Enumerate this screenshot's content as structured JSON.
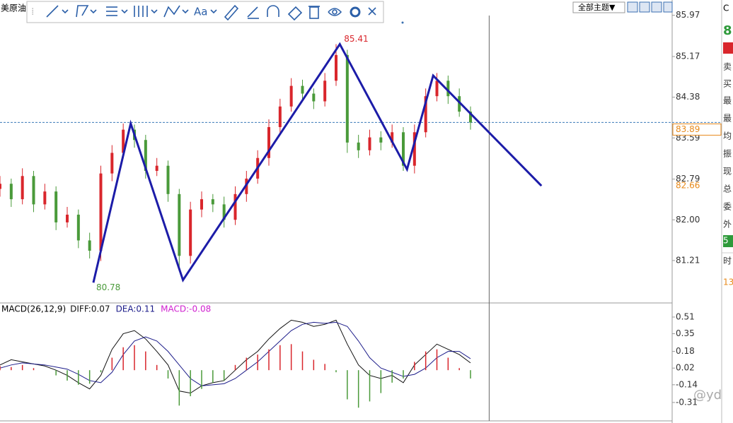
{
  "header": {
    "symbol": "美原油",
    "toolbar_text": "Aa",
    "theme_button": "全部主题▼"
  },
  "side_panel": [
    "C",
    "8",
    "卖",
    "买",
    "最",
    "最",
    "均",
    "振",
    "现",
    "总",
    "委",
    "外",
    "5",
    "时",
    "13"
  ],
  "watermark": "@yd",
  "chart_data": [
    {
      "type": "candlestick",
      "x": [
        0,
        3,
        6,
        9,
        12,
        15,
        18,
        21,
        24,
        27,
        30,
        33,
        36,
        39,
        42,
        45,
        48,
        51,
        54,
        57,
        60,
        63,
        66,
        69,
        72,
        75,
        78,
        81,
        84,
        87,
        90,
        93,
        96,
        99,
        102,
        105,
        108,
        111,
        114,
        117,
        120,
        123,
        126
      ],
      "open": [
        82.6,
        82.7,
        82.4,
        82.85,
        82.3,
        82.55,
        81.95,
        82.1,
        81.6,
        81.4,
        82.9,
        83.3,
        83.75,
        83.55,
        82.95,
        83.05,
        82.5,
        81.3,
        82.2,
        82.4,
        82.3,
        82.0,
        82.5,
        82.8,
        83.2,
        83.8,
        84.2,
        84.6,
        84.45,
        84.3,
        84.7,
        85.2,
        83.5,
        83.35,
        83.6,
        83.5,
        83.7,
        83.05,
        83.7,
        84.4,
        84.7,
        84.4,
        84.1
      ],
      "high": [
        82.85,
        82.8,
        83.0,
        82.95,
        82.7,
        82.65,
        82.25,
        82.2,
        81.75,
        83.05,
        83.45,
        83.87,
        83.85,
        83.65,
        83.2,
        83.15,
        82.6,
        82.35,
        82.55,
        82.5,
        82.45,
        82.65,
        82.95,
        83.35,
        83.95,
        84.35,
        84.75,
        84.72,
        84.55,
        84.85,
        85.41,
        85.3,
        83.65,
        83.75,
        83.72,
        83.85,
        83.8,
        83.85,
        84.55,
        84.85,
        84.8,
        84.55,
        84.2
      ],
      "low": [
        82.45,
        82.25,
        82.3,
        82.15,
        82.2,
        81.8,
        81.85,
        81.45,
        81.25,
        81.2,
        82.75,
        83.2,
        83.4,
        82.8,
        82.85,
        82.35,
        81.0,
        81.15,
        82.05,
        82.15,
        81.85,
        81.9,
        82.35,
        82.7,
        83.05,
        83.65,
        84.1,
        84.3,
        84.15,
        84.2,
        84.6,
        83.3,
        83.2,
        83.25,
        83.35,
        83.4,
        82.95,
        82.9,
        83.6,
        84.3,
        84.25,
        84.0,
        83.75
      ],
      "close": [
        82.7,
        82.4,
        82.85,
        82.3,
        82.55,
        81.95,
        82.1,
        81.6,
        81.4,
        82.9,
        83.3,
        83.75,
        83.55,
        82.95,
        83.05,
        82.5,
        81.3,
        82.2,
        82.4,
        82.3,
        82.0,
        82.5,
        82.8,
        83.2,
        83.8,
        84.2,
        84.6,
        84.45,
        84.3,
        84.7,
        85.2,
        83.5,
        83.35,
        83.6,
        83.5,
        83.7,
        83.05,
        83.7,
        84.4,
        84.7,
        84.4,
        84.1,
        83.89
      ],
      "up_color": "#d9262c",
      "down_color": "#4a9a3a",
      "series": [
        {
          "x": [
            25,
            35,
            49,
            91,
            109,
            116,
            145
          ],
          "values": [
            80.78,
            83.87,
            80.83,
            85.41,
            82.98,
            84.8,
            82.66
          ],
          "color": "#1c1ca8"
        }
      ],
      "last_price": 83.89,
      "last_price_color": "#3a7ab8",
      "cursor_x": 131,
      "xlim": [
        0,
        180
      ],
      "ylim": [
        80.4,
        86.13
      ],
      "yticks": [
        85.97,
        85.17,
        84.38,
        83.59,
        82.79,
        {
          "value": 82,
          "label": "82.00"
        },
        81.21
      ]
    },
    {
      "type": "macd",
      "title": "MACD(26,12,9)",
      "x": [
        0,
        3,
        6,
        9,
        12,
        15,
        18,
        21,
        24,
        27,
        30,
        33,
        36,
        39,
        42,
        45,
        48,
        51,
        54,
        57,
        60,
        63,
        66,
        69,
        72,
        75,
        78,
        81,
        84,
        87,
        90,
        93,
        96,
        99,
        102,
        105,
        108,
        111,
        114,
        117,
        120,
        123,
        126
      ],
      "series": [
        {
          "name": "DIFF:0.07",
          "color": "#111111",
          "values": [
            0.05,
            0.1,
            0.08,
            0.06,
            0.04,
            0.0,
            -0.05,
            -0.12,
            -0.18,
            -0.05,
            0.2,
            0.35,
            0.38,
            0.3,
            0.18,
            0.05,
            -0.2,
            -0.22,
            -0.15,
            -0.12,
            -0.1,
            0.0,
            0.1,
            0.18,
            0.3,
            0.4,
            0.48,
            0.46,
            0.42,
            0.44,
            0.48,
            0.25,
            0.05,
            -0.05,
            -0.08,
            -0.05,
            -0.12,
            0.05,
            0.15,
            0.25,
            0.2,
            0.15,
            0.07
          ]
        },
        {
          "name": "DEA:0.11",
          "color": "#1c1c8a",
          "values": [
            0.02,
            0.05,
            0.07,
            0.06,
            0.05,
            0.03,
            0.01,
            -0.04,
            -0.1,
            -0.12,
            -0.02,
            0.15,
            0.28,
            0.32,
            0.28,
            0.18,
            0.05,
            -0.08,
            -0.15,
            -0.14,
            -0.13,
            -0.08,
            0.0,
            0.08,
            0.18,
            0.28,
            0.38,
            0.44,
            0.46,
            0.45,
            0.46,
            0.42,
            0.28,
            0.12,
            0.02,
            -0.02,
            -0.06,
            -0.04,
            0.02,
            0.12,
            0.18,
            0.18,
            0.11
          ]
        },
        {
          "name": "MACD:-0.08",
          "color": "#d020d0",
          "up_color": "#d9262c",
          "down_color": "#4a9a3a",
          "values": [
            0.04,
            0.03,
            0.05,
            0.02,
            0.0,
            -0.05,
            -0.1,
            -0.14,
            -0.13,
            -0.02,
            0.12,
            0.22,
            0.24,
            0.18,
            0.05,
            -0.08,
            -0.34,
            -0.25,
            -0.18,
            -0.12,
            -0.1,
            0.05,
            0.12,
            0.15,
            0.2,
            0.24,
            0.25,
            0.18,
            0.1,
            0.06,
            -0.02,
            -0.28,
            -0.36,
            -0.3,
            -0.22,
            -0.12,
            -0.08,
            0.08,
            0.18,
            0.2,
            0.12,
            0.02,
            -0.08
          ]
        }
      ],
      "xlim": [
        0,
        180
      ],
      "ylim": [
        -0.48,
        0.625
      ],
      "yticks": [
        0.51,
        0.35,
        0.18,
        0.02,
        -0.14,
        -0.31
      ]
    }
  ]
}
